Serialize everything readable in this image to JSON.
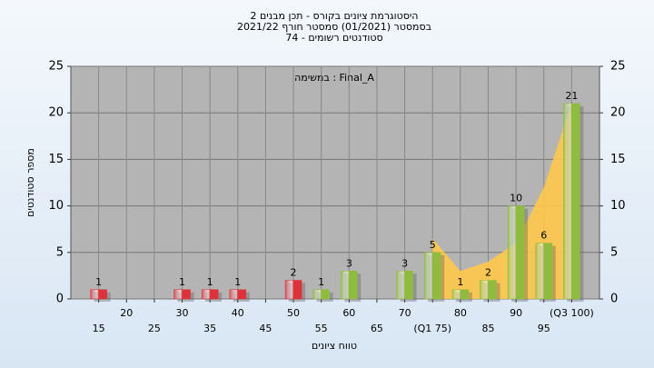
{
  "chart_data": {
    "type": "bar",
    "title_lines": [
      "היסטוגרמת ציונים בקורס - תכן מבנים 2",
      "בסמסטר  (01/2021)  סמסטר חורף 2021/22",
      "סטודנטים רשומים - 74"
    ],
    "annotation": "במשימה : Final_A",
    "x_label": "טווח ציונים",
    "y_label": "מספר סטודנטים",
    "categories": [
      "15",
      "20",
      "25",
      "30",
      "35",
      "40",
      "45",
      "50",
      "55",
      "60",
      "65",
      "70",
      "(Q1 75)",
      "80",
      "85",
      "90",
      "95",
      "(Q3 100)"
    ],
    "values": [
      1,
      0,
      0,
      1,
      1,
      1,
      0,
      2,
      1,
      3,
      0,
      3,
      5,
      1,
      2,
      10,
      6,
      21
    ],
    "colors": [
      "#e0303a",
      "#e0303a",
      "#e0303a",
      "#e0303a",
      "#e0303a",
      "#e0303a",
      "#e0303a",
      "#e0303a",
      "#8fbc3c",
      "#8fbc3c",
      "#8fbc3c",
      "#8fbc3c",
      "#8fbc3c",
      "#8fbc3c",
      "#8fbc3c",
      "#8fbc3c",
      "#8fbc3c",
      "#8fbc3c"
    ],
    "area_values": [
      null,
      null,
      null,
      null,
      null,
      null,
      null,
      null,
      null,
      null,
      null,
      null,
      6.5,
      3,
      4,
      6,
      12,
      21
    ],
    "area_color": "#ffc84a",
    "ylim": [
      0,
      25
    ],
    "yticks": [
      0,
      5,
      10,
      15,
      20,
      25
    ],
    "y2lim": [
      0,
      25
    ],
    "y2ticks": [
      0,
      5,
      10,
      15,
      20,
      25
    ],
    "grid": true
  }
}
